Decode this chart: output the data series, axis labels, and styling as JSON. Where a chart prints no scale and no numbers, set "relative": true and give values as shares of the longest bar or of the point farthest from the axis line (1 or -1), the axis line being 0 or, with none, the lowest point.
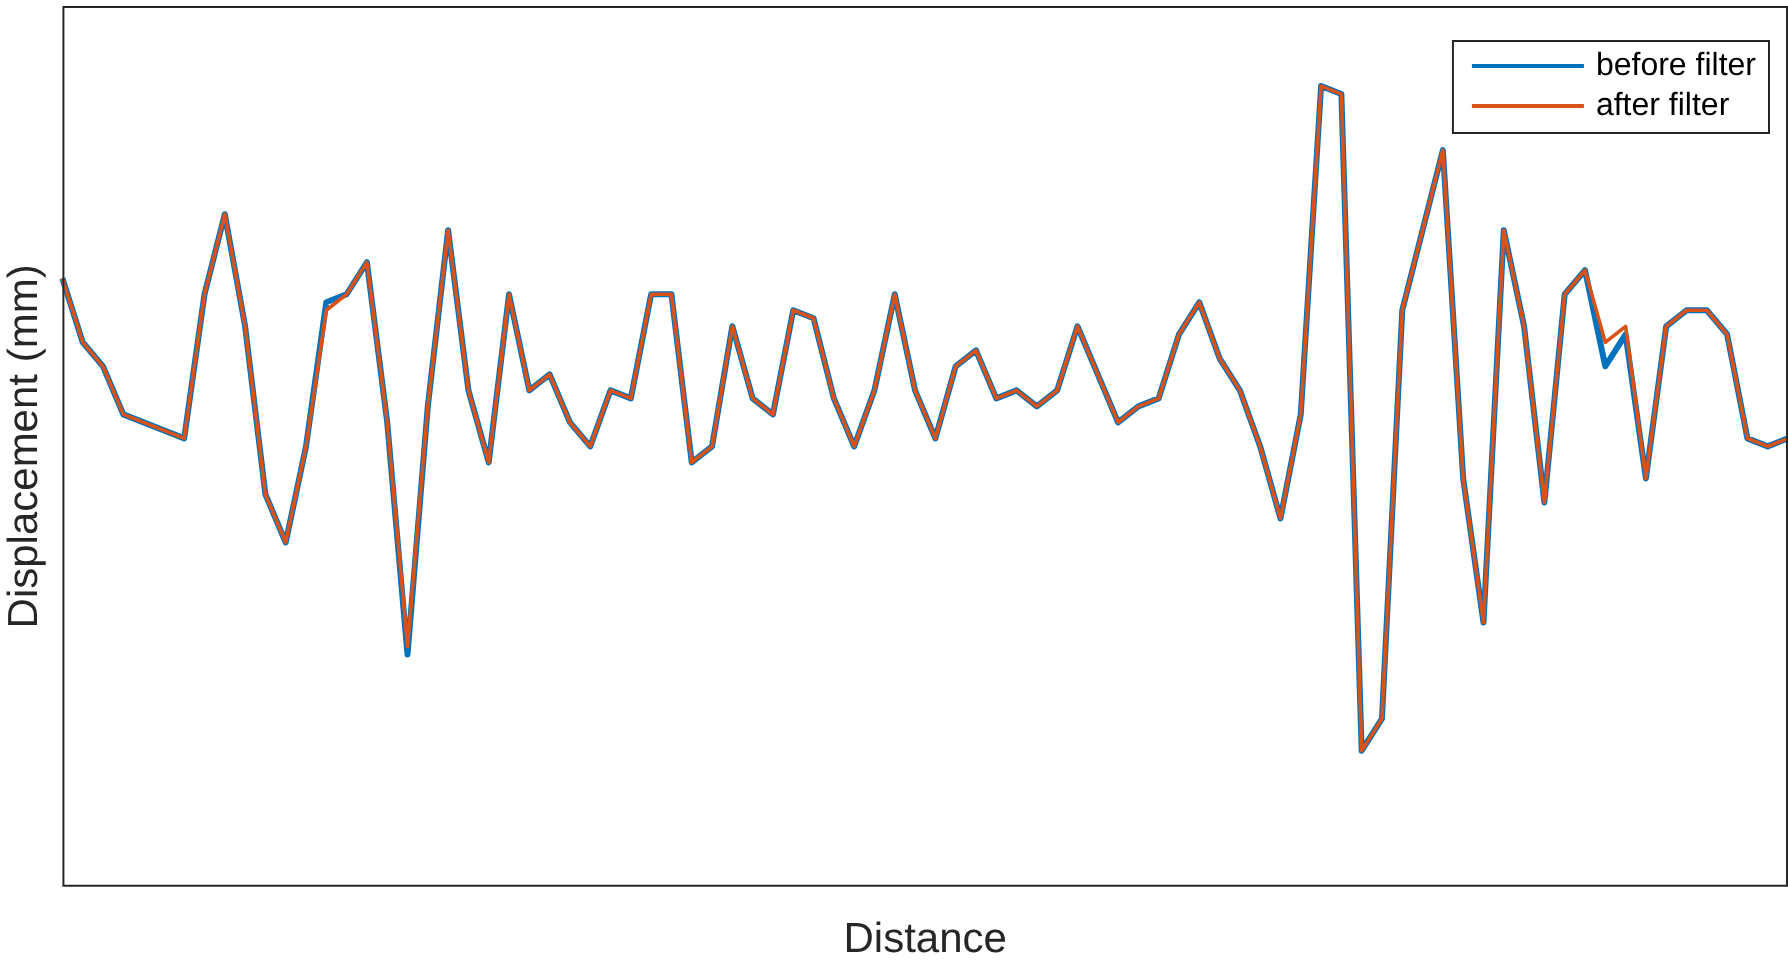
{
  "chart_data": {
    "type": "line",
    "xlabel": "Distance",
    "ylabel": "Displacement (mm)",
    "relative": true,
    "legend": "top right",
    "grid": false,
    "marker": "none",
    "line_style": "solid",
    "categories": [
      null,
      null,
      null,
      null,
      null,
      null,
      null,
      null,
      null,
      null,
      null,
      null,
      null,
      null,
      null,
      null,
      null,
      null,
      null,
      null,
      null,
      null,
      null,
      null,
      null,
      null,
      null,
      null,
      null,
      null,
      null,
      null,
      null,
      null,
      null,
      null,
      null,
      null,
      null,
      null,
      null,
      null,
      null,
      null,
      null,
      null,
      null,
      null,
      null,
      null,
      null,
      null,
      null,
      null,
      null,
      null,
      null,
      null,
      null,
      null,
      null,
      null,
      null,
      null,
      null,
      null,
      null,
      null,
      null,
      null,
      null,
      null,
      null,
      null,
      null,
      null,
      null,
      null,
      null,
      null,
      null,
      null,
      null,
      null,
      null,
      null
    ],
    "series": [
      {
        "name": "before filter",
        "color": "#0072bd",
        "values": [
          0.76,
          0.68,
          0.65,
          0.59,
          0.58,
          0.57,
          0.56,
          0.74,
          0.84,
          0.7,
          0.49,
          0.43,
          0.55,
          0.73,
          0.74,
          0.78,
          0.58,
          0.29,
          0.6,
          0.82,
          0.62,
          0.53,
          0.74,
          0.62,
          0.64,
          0.58,
          0.55,
          0.62,
          0.61,
          0.74,
          0.74,
          0.53,
          0.55,
          0.7,
          0.61,
          0.59,
          0.72,
          0.71,
          0.61,
          0.55,
          0.62,
          0.74,
          0.62,
          0.56,
          0.65,
          0.67,
          0.61,
          0.62,
          0.6,
          0.62,
          0.7,
          0.64,
          0.58,
          0.6,
          0.61,
          0.69,
          0.73,
          0.66,
          0.62,
          0.55,
          0.46,
          0.59,
          1.0,
          0.99,
          0.17,
          0.21,
          0.72,
          0.82,
          0.92,
          0.51,
          0.33,
          0.82,
          0.7,
          0.48,
          0.74,
          0.77,
          0.65,
          0.69,
          0.51,
          0.7,
          0.72,
          0.72,
          0.69,
          0.56,
          0.55,
          0.56
        ]
      },
      {
        "name": "after filter",
        "color": "#d95319",
        "values": [
          0.76,
          0.68,
          0.65,
          0.59,
          0.58,
          0.57,
          0.56,
          0.74,
          0.84,
          0.7,
          0.49,
          0.43,
          0.55,
          0.72,
          0.74,
          0.78,
          0.58,
          0.3,
          0.6,
          0.82,
          0.62,
          0.53,
          0.74,
          0.62,
          0.64,
          0.58,
          0.55,
          0.62,
          0.61,
          0.74,
          0.74,
          0.53,
          0.55,
          0.7,
          0.61,
          0.59,
          0.72,
          0.71,
          0.61,
          0.55,
          0.62,
          0.74,
          0.62,
          0.56,
          0.65,
          0.67,
          0.61,
          0.62,
          0.6,
          0.62,
          0.7,
          0.64,
          0.58,
          0.6,
          0.61,
          0.69,
          0.73,
          0.66,
          0.62,
          0.55,
          0.46,
          0.59,
          1.0,
          0.99,
          0.17,
          0.21,
          0.72,
          0.82,
          0.92,
          0.51,
          0.33,
          0.82,
          0.7,
          0.48,
          0.74,
          0.77,
          0.68,
          0.7,
          0.51,
          0.7,
          0.72,
          0.72,
          0.69,
          0.56,
          0.55,
          0.56
        ]
      }
    ]
  }
}
